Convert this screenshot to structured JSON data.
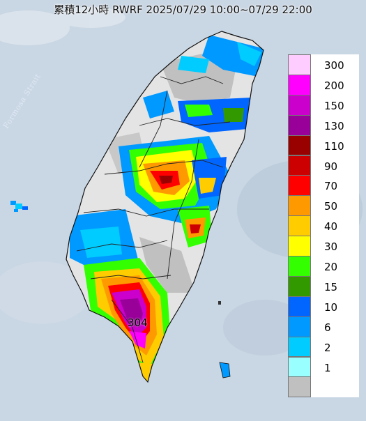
{
  "title": "累積12小時 RWRF 2025/07/29 10:00~07/29 22:00",
  "strait_label": "Formosa Strait",
  "peak_value": "304",
  "legend": {
    "levels": [
      {
        "label": "300",
        "color": "#ffccff"
      },
      {
        "label": "200",
        "color": "#ff00ff"
      },
      {
        "label": "150",
        "color": "#cc00cc"
      },
      {
        "label": "130",
        "color": "#990099"
      },
      {
        "label": "110",
        "color": "#990000"
      },
      {
        "label": "90",
        "color": "#cc0000"
      },
      {
        "label": "70",
        "color": "#ff0000"
      },
      {
        "label": "50",
        "color": "#ff9900"
      },
      {
        "label": "40",
        "color": "#ffcc00"
      },
      {
        "label": "30",
        "color": "#ffff00"
      },
      {
        "label": "20",
        "color": "#33ff00"
      },
      {
        "label": "15",
        "color": "#339900"
      },
      {
        "label": "10",
        "color": "#0066ff"
      },
      {
        "label": "6",
        "color": "#0099ff"
      },
      {
        "label": "2",
        "color": "#00ccff"
      },
      {
        "label": "1",
        "color": "#99ffff"
      },
      {
        "label": "",
        "color": "#c0c0c0"
      }
    ]
  },
  "colors": {
    "sea": "#c9d6e3",
    "land": "#e4e4e4",
    "grey_area": "#c0c0c0",
    "county_line": "#222222"
  }
}
